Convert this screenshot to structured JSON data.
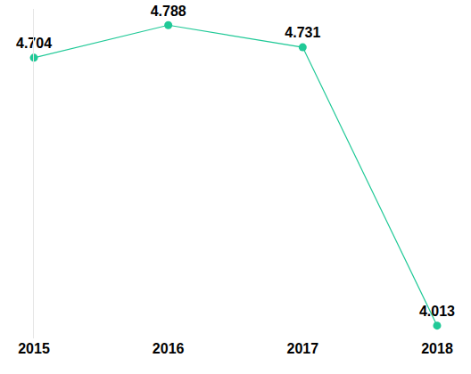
{
  "chart_data": {
    "type": "line",
    "categories": [
      "2015",
      "2016",
      "2017",
      "2018"
    ],
    "values": [
      4.704,
      4.788,
      4.731,
      4.013
    ],
    "color": "#20c997",
    "marker": "circle",
    "ylim": [
      3.98,
      4.83
    ],
    "yticks": [],
    "grid": false,
    "data_labels": true,
    "tick_labels": "x"
  }
}
